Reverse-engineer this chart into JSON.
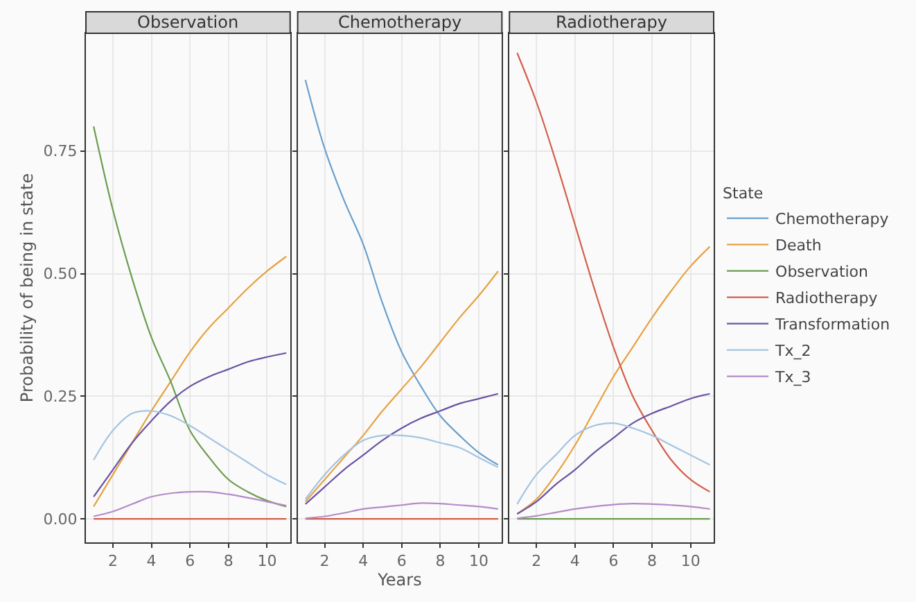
{
  "chart_data": [
    {
      "type": "line",
      "title": "Observation",
      "ylabel": "Probability of being in state",
      "legend_title": "State",
      "legend": "right",
      "x": [
        1,
        2,
        3,
        4,
        5,
        6,
        7,
        8,
        9,
        10,
        11
      ],
      "xlim": [
        0.6,
        11.2
      ],
      "xticks": [
        2,
        4,
        6,
        8,
        10
      ],
      "ylim": [
        -0.048,
        0.99
      ],
      "yticks": [
        {
          "value": 0,
          "label": "0.00"
        },
        0.25,
        {
          "value": 0.5,
          "label": "0.50"
        },
        0.75
      ],
      "grid": true,
      "series": [
        {
          "name": "Chemotherapy",
          "color": "#6a9fcb",
          "values": [
            null,
            null,
            null,
            null,
            null,
            null,
            null,
            null,
            null,
            null,
            null
          ]
        },
        {
          "name": "Death",
          "color": "#e6a141",
          "values": [
            0.025,
            0.09,
            0.155,
            0.22,
            0.28,
            0.34,
            0.39,
            0.43,
            0.47,
            0.505,
            0.535
          ]
        },
        {
          "name": "Observation",
          "color": "#6a9d4f",
          "values": [
            0.8,
            0.63,
            0.49,
            0.37,
            0.28,
            0.18,
            0.125,
            0.08,
            0.055,
            0.037,
            0.025
          ]
        },
        {
          "name": "Radiotherapy",
          "color": "#d25e4a",
          "values": [
            0,
            0,
            0,
            0,
            0,
            0,
            0,
            0,
            0,
            0,
            0
          ]
        },
        {
          "name": "Transformation",
          "color": "#6a53a3",
          "values": [
            0.045,
            0.1,
            0.155,
            0.2,
            0.24,
            0.27,
            0.29,
            0.305,
            0.32,
            0.33,
            0.338
          ]
        },
        {
          "name": "Tx_2",
          "color": "#a3c4e0",
          "values": [
            0.12,
            0.18,
            0.215,
            0.22,
            0.21,
            0.19,
            0.165,
            0.14,
            0.115,
            0.09,
            0.07
          ]
        },
        {
          "name": "Tx_3",
          "color": "#b58ac8",
          "values": [
            0.005,
            0.015,
            0.03,
            0.045,
            0.052,
            0.055,
            0.055,
            0.05,
            0.043,
            0.035,
            0.027
          ]
        }
      ]
    },
    {
      "type": "line",
      "title": "Chemotherapy",
      "xlabel": "Years",
      "x": [
        1,
        2,
        3,
        4,
        5,
        6,
        7,
        8,
        9,
        10,
        11
      ],
      "xlim": [
        0.6,
        11.2
      ],
      "xticks": [
        2,
        4,
        6,
        8,
        10
      ],
      "ylim": [
        -0.048,
        0.99
      ],
      "yticks": [
        {
          "value": 0,
          "label": null
        },
        {
          "value": 0.25,
          "label": null
        },
        {
          "value": 0.5,
          "label": null
        },
        {
          "value": 0.75,
          "label": null
        }
      ],
      "grid": true,
      "tick_labels": "x",
      "series": [
        {
          "color": "#6a9fcb",
          "values": [
            0.895,
            0.755,
            0.65,
            0.56,
            0.44,
            0.34,
            0.27,
            0.21,
            0.17,
            0.135,
            0.11
          ]
        },
        {
          "color": "#e6a141",
          "values": [
            0.035,
            0.08,
            0.125,
            0.17,
            0.22,
            0.265,
            0.31,
            0.36,
            0.41,
            0.455,
            0.505
          ]
        },
        {
          "color": "#6a9d4f",
          "values": [
            null,
            null,
            null,
            null,
            null,
            null,
            null,
            null,
            null,
            null,
            null
          ]
        },
        {
          "color": "#d25e4a",
          "values": [
            0,
            0,
            0,
            0,
            0,
            0,
            0,
            0,
            0,
            0,
            0
          ]
        },
        {
          "color": "#6a53a3",
          "values": [
            0.03,
            0.065,
            0.1,
            0.13,
            0.16,
            0.185,
            0.205,
            0.22,
            0.235,
            0.245,
            0.255
          ]
        },
        {
          "color": "#a3c4e0",
          "values": [
            0.04,
            0.09,
            0.13,
            0.16,
            0.17,
            0.17,
            0.165,
            0.155,
            0.145,
            0.125,
            0.105
          ]
        },
        {
          "color": "#b58ac8",
          "values": [
            0.001,
            0.005,
            0.012,
            0.02,
            0.024,
            0.028,
            0.032,
            0.031,
            0.028,
            0.025,
            0.02
          ]
        }
      ]
    },
    {
      "type": "line",
      "title": "Radiotherapy",
      "x": [
        1,
        2,
        3,
        4,
        5,
        6,
        7,
        8,
        9,
        10,
        11
      ],
      "xlim": [
        0.6,
        11.2
      ],
      "xticks": [
        2,
        4,
        6,
        8,
        10
      ],
      "ylim": [
        -0.048,
        0.99
      ],
      "yticks": [
        {
          "value": 0,
          "label": null
        },
        {
          "value": 0.25,
          "label": null
        },
        {
          "value": 0.5,
          "label": null
        },
        {
          "value": 0.75,
          "label": null
        }
      ],
      "grid": true,
      "tick_labels": "x",
      "series": [
        {
          "color": "#6a9fcb",
          "values": [
            null,
            null,
            null,
            null,
            null,
            null,
            null,
            null,
            null,
            null,
            null
          ]
        },
        {
          "color": "#e6a141",
          "values": [
            0.01,
            0.04,
            0.09,
            0.15,
            0.22,
            0.29,
            0.35,
            0.41,
            0.465,
            0.515,
            0.555
          ]
        },
        {
          "color": "#6a9d4f",
          "values": [
            0,
            0,
            0,
            0,
            0,
            0,
            0,
            0,
            0,
            0,
            0
          ]
        },
        {
          "color": "#d25e4a",
          "values": [
            0.95,
            0.85,
            0.73,
            0.6,
            0.47,
            0.35,
            0.25,
            0.18,
            0.12,
            0.08,
            0.055
          ]
        },
        {
          "color": "#6a53a3",
          "values": [
            0.01,
            0.035,
            0.07,
            0.1,
            0.135,
            0.165,
            0.195,
            0.215,
            0.23,
            0.245,
            0.255
          ]
        },
        {
          "color": "#a3c4e0",
          "values": [
            0.03,
            0.09,
            0.13,
            0.17,
            0.19,
            0.195,
            0.185,
            0.17,
            0.15,
            0.13,
            0.11
          ]
        },
        {
          "color": "#b58ac8",
          "values": [
            0.001,
            0.006,
            0.013,
            0.02,
            0.025,
            0.029,
            0.031,
            0.03,
            0.028,
            0.025,
            0.02
          ]
        }
      ]
    }
  ]
}
